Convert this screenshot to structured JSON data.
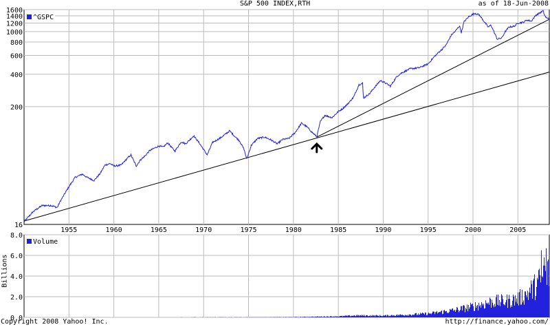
{
  "header": {
    "title": "S&P 500 INDEX,RTH",
    "as_of": "as of 18-Jun-2008"
  },
  "footer": {
    "copyright": "Copyright 2008 Yahoo! Inc.",
    "url": "http://finance.yahoo.com/"
  },
  "colors": {
    "series": "#2222dd",
    "trendline": "#000000",
    "grid": "#bbbbbb"
  },
  "chart_data": [
    {
      "type": "line",
      "legend": "^GSPC",
      "legend_position": "top-left",
      "y_scale": "log",
      "ylim": [
        16,
        1600
      ],
      "x_range": [
        1950.0,
        2008.5
      ],
      "x_ticks": [
        1955,
        1960,
        1965,
        1970,
        1975,
        1980,
        1985,
        1990,
        1995,
        2000,
        2005
      ],
      "y_ticks": [
        16,
        200,
        400,
        600,
        800,
        1000,
        1200,
        1400,
        1600
      ],
      "grid": true,
      "series": [
        {
          "name": "^GSPC",
          "x": [
            1950.0,
            1951.0,
            1952.0,
            1953.0,
            1953.7,
            1954.0,
            1955.0,
            1955.7,
            1956.0,
            1956.5,
            1957.0,
            1957.8,
            1958.5,
            1959.0,
            1959.6,
            1960.0,
            1960.8,
            1961.5,
            1961.9,
            1962.5,
            1962.9,
            1963.5,
            1964.0,
            1965.0,
            1965.5,
            1966.0,
            1966.8,
            1967.5,
            1968.0,
            1968.9,
            1969.5,
            1970.4,
            1971.0,
            1971.5,
            1972.0,
            1972.9,
            1973.5,
            1974.0,
            1974.5,
            1974.8,
            1975.3,
            1976.0,
            1976.8,
            1977.5,
            1978.2,
            1978.8,
            1979.5,
            1980.2,
            1980.9,
            1981.5,
            1982.0,
            1982.6,
            1983.0,
            1983.5,
            1984.3,
            1985.0,
            1985.5,
            1986.0,
            1986.7,
            1987.3,
            1987.7,
            1987.8,
            1988.5,
            1989.0,
            1989.7,
            1990.3,
            1990.8,
            1991.5,
            1992.0,
            1993.0,
            1994.0,
            1995.0,
            1995.5,
            1996.0,
            1996.6,
            1997.0,
            1997.6,
            1998.0,
            1998.5,
            1998.7,
            1999.0,
            1999.5,
            2000.2,
            2000.7,
            2001.0,
            2001.7,
            2002.0,
            2002.7,
            2003.2,
            2003.6,
            2004.0,
            2004.6,
            2005.0,
            2005.6,
            2006.0,
            2006.5,
            2007.0,
            2007.5,
            2007.8,
            2008.0,
            2008.2,
            2008.5
          ],
          "y": [
            17,
            21,
            24,
            24,
            23,
            26,
            36,
            44,
            45,
            47,
            44,
            41,
            48,
            57,
            59,
            56,
            57,
            66,
            71,
            56,
            63,
            70,
            78,
            86,
            84,
            92,
            77,
            94,
            90,
            107,
            92,
            71,
            93,
            98,
            104,
            119,
            105,
            96,
            80,
            65,
            87,
            101,
            104,
            98,
            90,
            99,
            101,
            115,
            140,
            130,
            117,
            105,
            145,
            166,
            158,
            180,
            192,
            210,
            245,
            320,
            330,
            240,
            265,
            300,
            350,
            330,
            310,
            380,
            410,
            450,
            460,
            500,
            560,
            620,
            690,
            750,
            930,
            1000,
            1130,
            980,
            1230,
            1370,
            1480,
            1430,
            1320,
            1100,
            1150,
            850,
            870,
            1000,
            1100,
            1120,
            1200,
            1220,
            1280,
            1250,
            1420,
            1500,
            1560,
            1400,
            1330,
            1340
          ]
        }
      ],
      "trendlines": [
        {
          "points": [
            [
              1950.0,
              17.2
            ],
            [
              2008.5,
              420
            ]
          ]
        },
        {
          "points": [
            [
              1982.6,
              104
            ],
            [
              2008.5,
              1300
            ]
          ]
        }
      ],
      "annotation": {
        "symbol": "up-arrow",
        "x": 1982.6,
        "y": 80
      }
    },
    {
      "type": "bar",
      "legend": "Volume",
      "legend_position": "top-left",
      "ylabel": "Billions",
      "ylim": [
        0,
        8
      ],
      "y_ticks": [
        "0.0",
        "2.0",
        "4.0",
        "6.0",
        "8.0"
      ],
      "grid": true,
      "volume_curve": {
        "x": [
          1950,
          1965,
          1975,
          1980,
          1982,
          1985,
          1987,
          1990,
          1995,
          1998,
          2000,
          2002,
          2004,
          2005,
          2006,
          2007,
          2008
        ],
        "y": [
          0.002,
          0.005,
          0.015,
          0.03,
          0.06,
          0.1,
          0.18,
          0.16,
          0.35,
          0.7,
          1.05,
          1.5,
          1.6,
          1.8,
          2.3,
          3.1,
          4.2
        ]
      },
      "peak_volume": [
        [
          2007.6,
          6.5
        ],
        [
          2008.1,
          6.7
        ],
        [
          2007.9,
          5.8
        ]
      ]
    }
  ]
}
